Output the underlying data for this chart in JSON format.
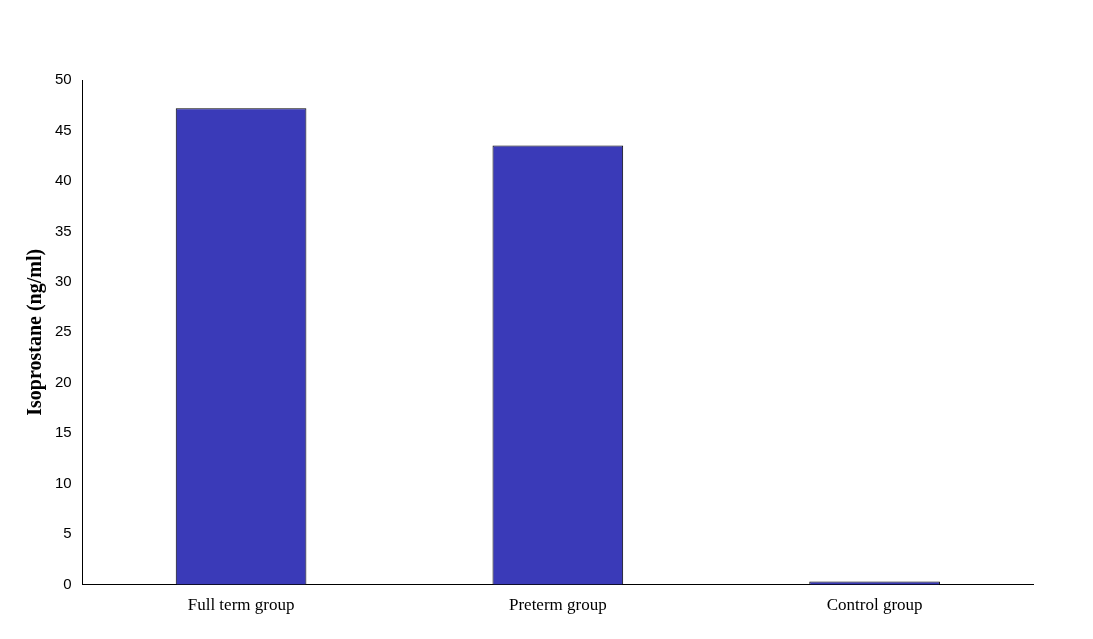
{
  "chart_data": {
    "type": "bar",
    "ylabel": "Isoprostane (ng/ml)",
    "categories": [
      "Full term group",
      "Preterm group",
      "Control group"
    ],
    "values": [
      47.2,
      43.5,
      0.3
    ],
    "color": "#3a3ab8",
    "ylim": [
      0,
      50
    ],
    "yticks": [
      0,
      5,
      10,
      15,
      20,
      25,
      30,
      35,
      40,
      45,
      50
    ],
    "grid": false,
    "legend": false
  }
}
